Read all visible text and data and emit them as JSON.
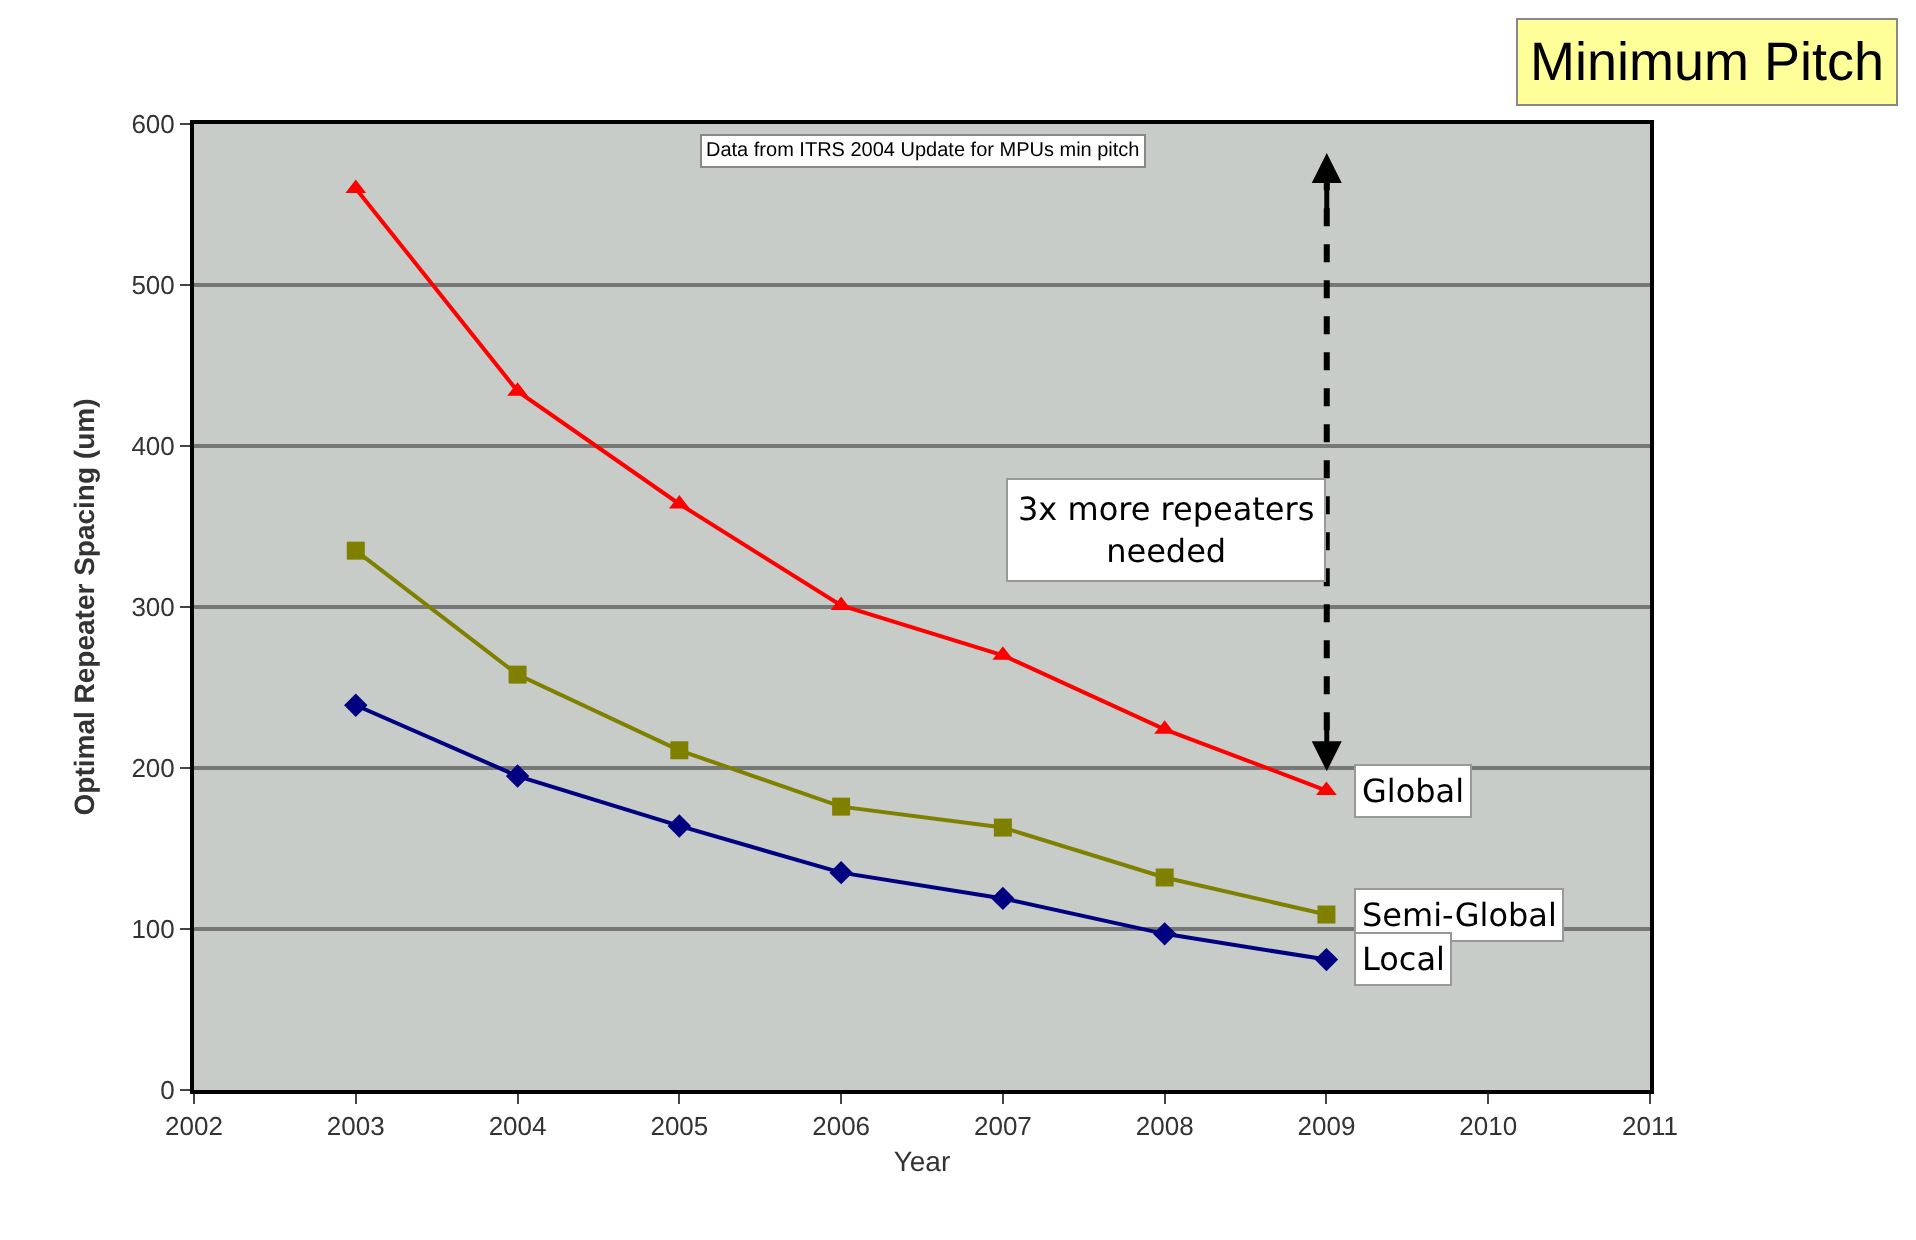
{
  "chart_data": {
    "type": "line",
    "title": "Minimum Pitch",
    "xlabel": "Year",
    "ylabel": "Optimal Repeater Spacing (um)",
    "x": [
      2003,
      2004,
      2005,
      2006,
      2007,
      2008,
      2009
    ],
    "series": [
      {
        "name": "Global",
        "color": "#ff0000",
        "marker": "triangle",
        "values": [
          560,
          434,
          364,
          301,
          270,
          224,
          186
        ]
      },
      {
        "name": "Semi-Global",
        "color": "#808000",
        "marker": "square",
        "values": [
          335,
          258,
          211,
          176,
          163,
          132,
          109
        ]
      },
      {
        "name": "Local",
        "color": "#000080",
        "marker": "diamond",
        "values": [
          239,
          195,
          164,
          135,
          119,
          97,
          81
        ]
      }
    ],
    "xlim": [
      2002,
      2011
    ],
    "xticks": [
      2002,
      2003,
      2004,
      2005,
      2006,
      2007,
      2008,
      2009,
      2010,
      2011
    ],
    "ylim": [
      0,
      600
    ],
    "yticks": [
      0,
      100,
      200,
      300,
      400,
      500,
      600
    ],
    "grid": "y",
    "legend": false,
    "line_style": "solid",
    "annotations": [
      "Data from ITRS 2004 Update for MPUs min pitch",
      "3x more repeaters\nneeded"
    ]
  }
}
